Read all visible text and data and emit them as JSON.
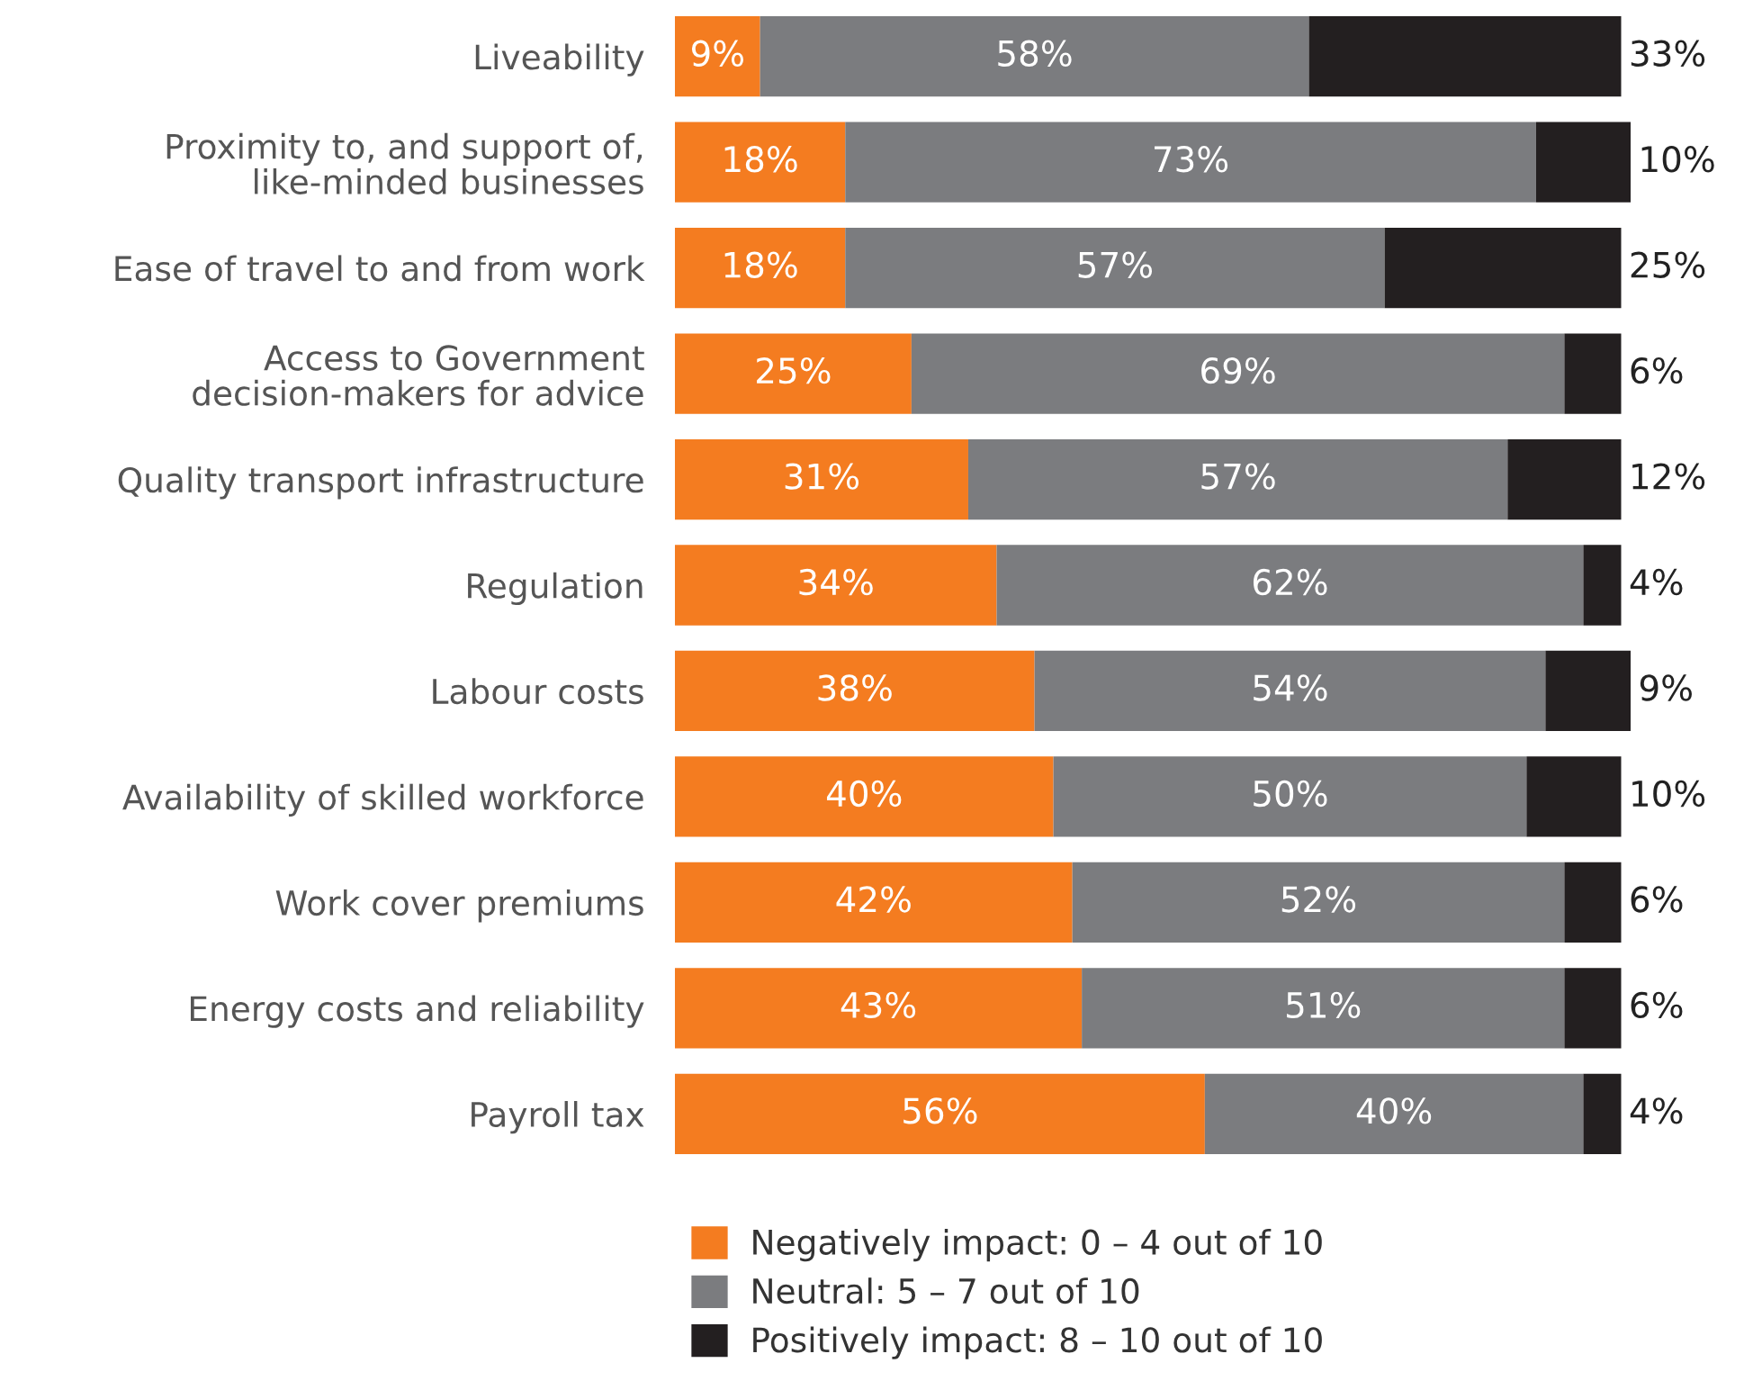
{
  "chart_data": {
    "type": "bar",
    "orientation": "horizontal",
    "stacked": true,
    "legend": "bottom",
    "tick_labels": "y",
    "grid": false,
    "categories": [
      "Liveability",
      "Proximity to, and support of,\nlike-minded businesses",
      "Ease of travel to and from work",
      "Access to Government\ndecision-makers for advice",
      "Quality transport infrastructure",
      "Regulation",
      "Labour costs",
      "Availability of skilled workforce",
      "Work cover premiums",
      "Energy costs and reliability",
      "Payroll tax"
    ],
    "series": [
      {
        "name": "Negatively impact: 0 – 4 out of 10",
        "color": "#f47c20",
        "values": [
          9,
          18,
          18,
          25,
          31,
          34,
          38,
          40,
          42,
          43,
          56
        ],
        "value_labels": [
          "9%",
          "18%",
          "18%",
          "25%",
          "31%",
          "34%",
          "38%",
          "40%",
          "42%",
          "43%",
          "56%"
        ]
      },
      {
        "name": "Neutral: 5 – 7 out of 10",
        "color": "#7b7c7f",
        "values": [
          58,
          73,
          57,
          69,
          57,
          62,
          54,
          50,
          52,
          51,
          40
        ],
        "value_labels": [
          "58%",
          "73%",
          "57%",
          "69%",
          "57%",
          "62%",
          "54%",
          "50%",
          "52%",
          "51%",
          "40%"
        ]
      },
      {
        "name": "Positively impact: 8 – 10 out of 10",
        "color": "#231f20",
        "values": [
          33,
          10,
          25,
          6,
          12,
          4,
          9,
          10,
          6,
          6,
          4
        ],
        "value_labels": [
          "33%",
          "10%",
          "25%",
          "6%",
          "12%",
          "4%",
          "9%",
          "10%",
          "6%",
          "6%",
          "4%"
        ]
      }
    ]
  }
}
